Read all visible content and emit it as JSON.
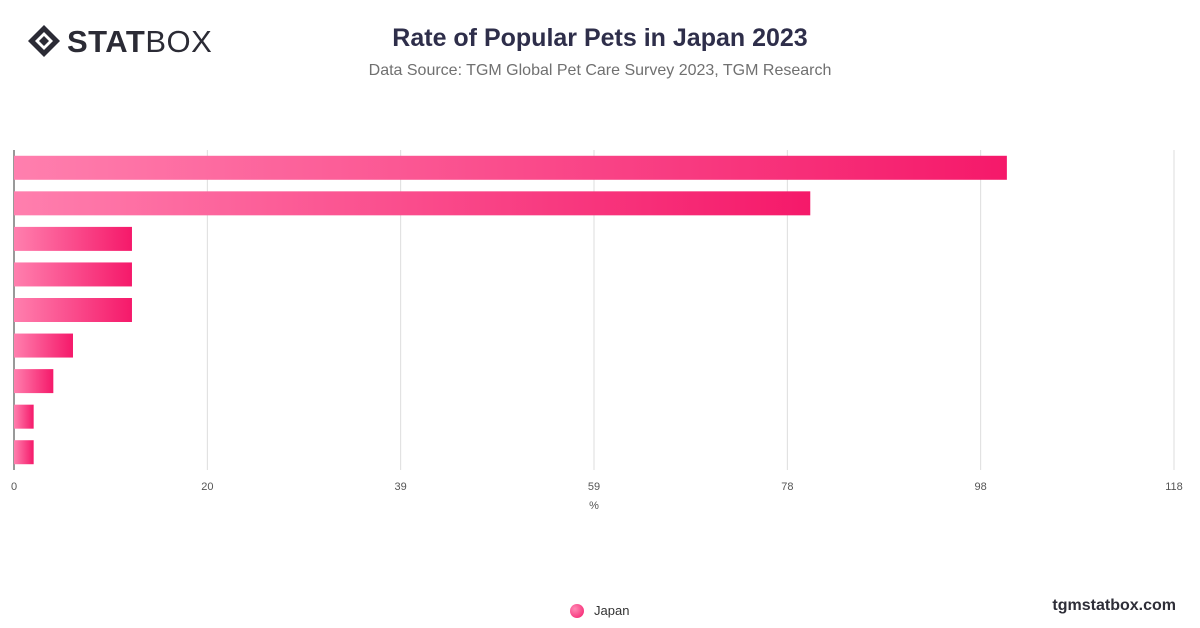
{
  "brand": {
    "bold": "STAT",
    "light": "BOX",
    "icon": "statbox-diamond-icon"
  },
  "site": "tgmstatbox.com",
  "chart_data": {
    "type": "bar",
    "orientation": "horizontal",
    "title": "Rate of Popular Pets in Japan 2023",
    "subtitle": "Data Source: TGM Global Pet Care Survey 2023, TGM Research",
    "xlabel": "%",
    "xlim": [
      0,
      118
    ],
    "xticks": [
      "0",
      "20",
      "39",
      "59",
      "78",
      "98",
      "118"
    ],
    "grid": true,
    "legend_position": "bottom-center",
    "categories": [
      "",
      "",
      "",
      "",
      "",
      "",
      "",
      "",
      ""
    ],
    "series": [
      {
        "name": "Japan",
        "color": "#f5196a",
        "color_light": "#ff7fae",
        "values": [
          101,
          81,
          12,
          12,
          12,
          6,
          4,
          2,
          2
        ]
      }
    ]
  }
}
